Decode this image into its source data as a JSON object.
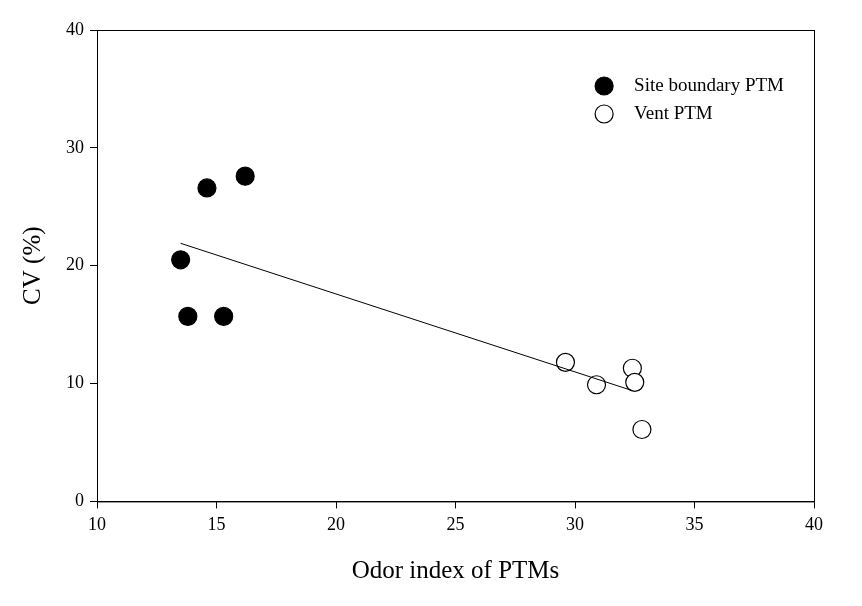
{
  "chart_data": {
    "type": "scatter",
    "x_label": "Odor index of PTMs",
    "y_label": "CV (%)",
    "xlim": [
      10,
      40
    ],
    "xticks": [
      10,
      15,
      20,
      25,
      30,
      35,
      40
    ],
    "ylim": [
      0,
      40
    ],
    "yticks": [
      0,
      10,
      20,
      30,
      40
    ],
    "grid": false,
    "legend": "upper right",
    "series": [
      {
        "name": "Site boundary PTM",
        "color": "#000000",
        "marker": "circle",
        "x": [
          13.5,
          14.6,
          16.2,
          13.8,
          15.3
        ],
        "values": [
          20.5,
          26.6,
          27.6,
          15.7,
          15.7
        ]
      },
      {
        "name": "Vent PTM",
        "color": "#000000",
        "marker": "circle_open",
        "x": [
          29.6,
          30.9,
          32.4,
          32.5,
          32.8
        ],
        "values": [
          11.8,
          9.9,
          11.3,
          10.1,
          6.1
        ]
      }
    ],
    "trend_line": {
      "x": [
        13.5,
        32.4
      ],
      "values": [
        21.9,
        9.4
      ],
      "color": "#000000",
      "line_style": "solid"
    }
  }
}
